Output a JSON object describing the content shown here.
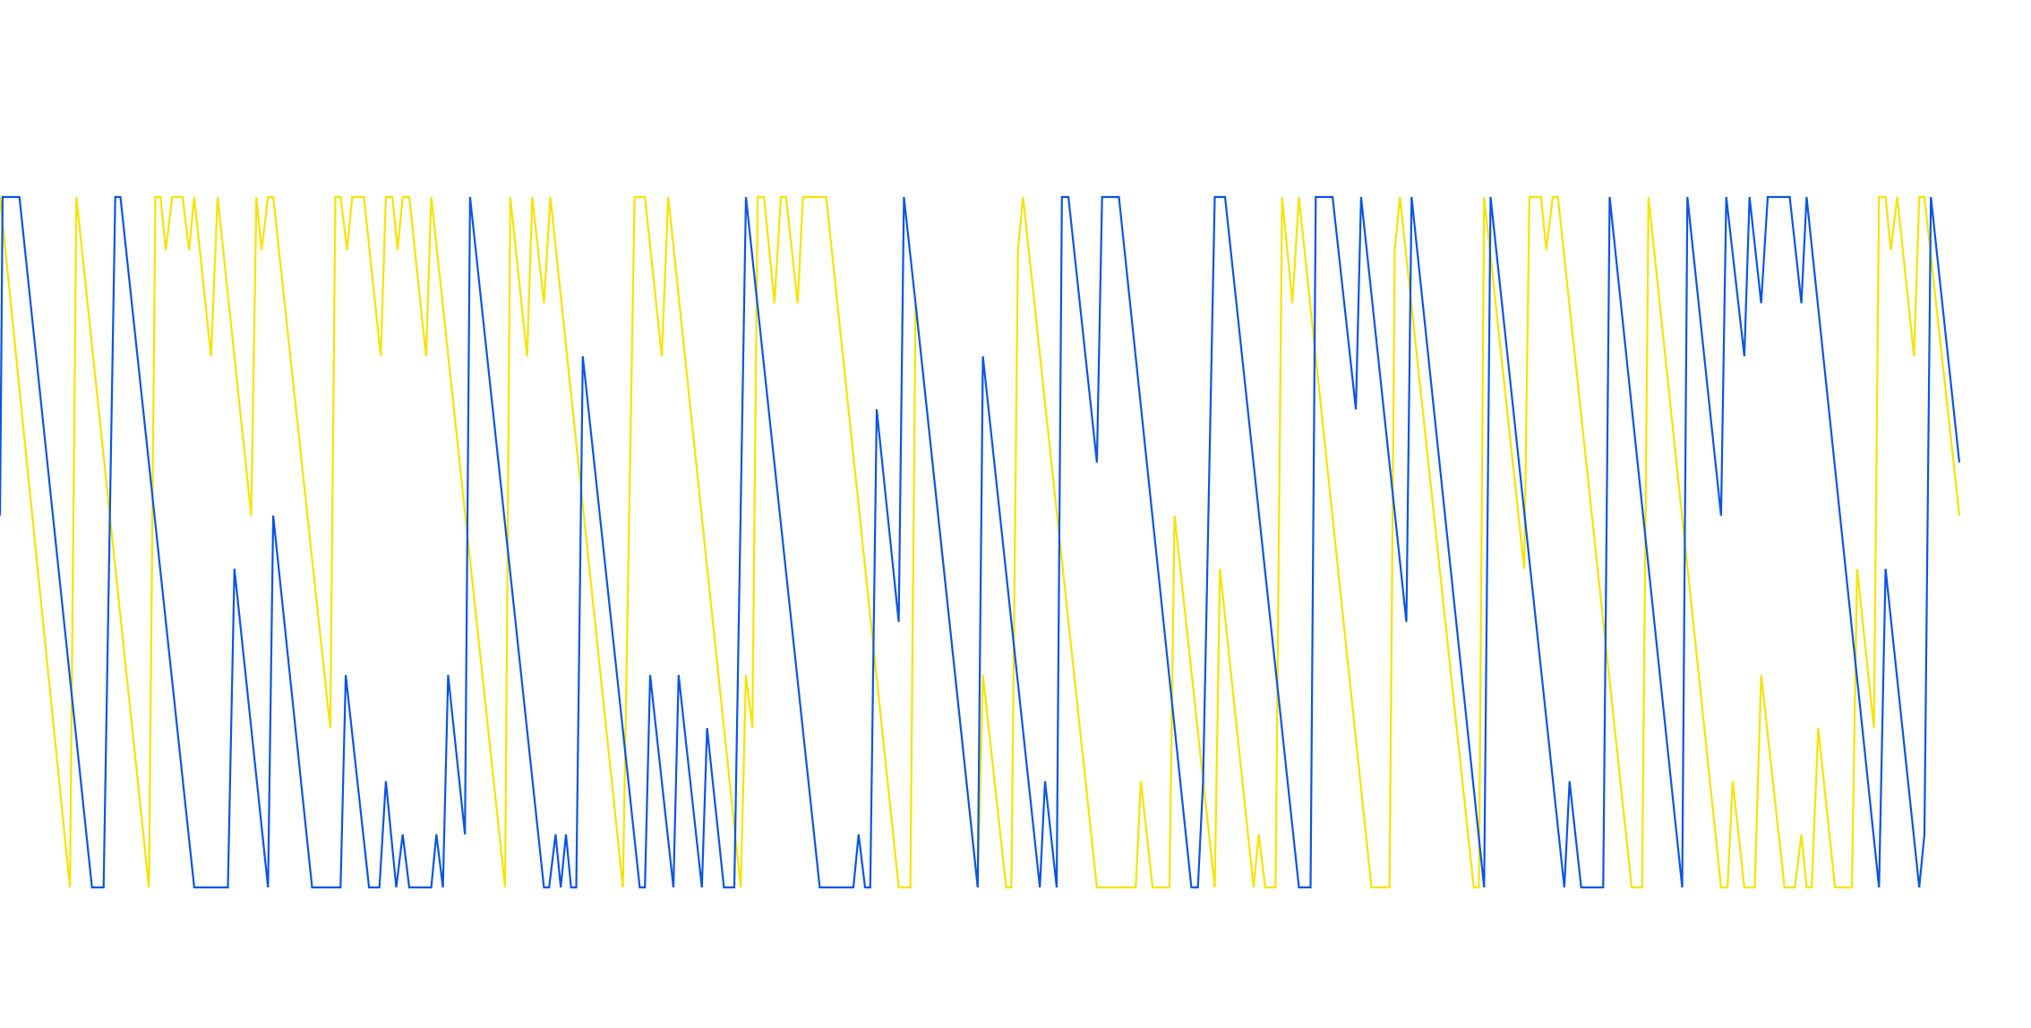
{
  "chart_data": {
    "type": "line",
    "xlim": [
      0,
      1513
    ],
    "ylim": [
      0,
      13
    ],
    "series": [
      {
        "color": "#0a55e6",
        "x": [
          0,
          2,
          15,
          71,
          80,
          89,
          93,
          150,
          176,
          181,
          207,
          211,
          241,
          263,
          267,
          285,
          293,
          298,
          306,
          311,
          316,
          333,
          337,
          342,
          346,
          359,
          363,
          420,
          424,
          429,
          433,
          437,
          441,
          445,
          450,
          494,
          498,
          502,
          520,
          524,
          542,
          546,
          559,
          567,
          576,
          633,
          659,
          663,
          668,
          672,
          677,
          694,
          698,
          707,
          755,
          759,
          803,
          807,
          816,
          820,
          825,
          847,
          851,
          864,
          920,
          925,
          929,
          938,
          946,
          1003,
          1012,
          1016,
          1029,
          1047,
          1051,
          1086,
          1090,
          1146,
          1151,
          1208,
          1212,
          1221,
          1238,
          1243,
          1299,
          1303,
          1329,
          1333,
          1347,
          1351,
          1360,
          1365,
          1382,
          1391,
          1395,
          1451,
          1456,
          1482,
          1486,
          1491,
          1513
        ],
        "values": [
          7,
          13,
          13,
          0,
          0,
          13,
          13,
          0,
          0,
          6,
          0,
          7,
          0,
          0,
          4,
          0,
          0,
          2,
          0,
          1,
          0,
          0,
          1,
          0,
          4,
          1,
          13,
          0,
          0,
          1,
          0,
          1,
          0,
          0,
          10,
          0,
          0,
          4,
          0,
          4,
          0,
          3,
          0,
          0,
          13,
          0,
          0,
          1,
          0,
          0,
          9,
          5,
          13,
          11,
          0,
          10,
          0,
          2,
          0,
          13,
          13,
          8,
          13,
          13,
          0,
          0,
          2,
          13,
          13,
          0,
          0,
          13,
          13,
          9,
          13,
          5,
          13,
          0,
          13,
          0,
          2,
          0,
          0,
          13,
          0,
          13,
          7,
          13,
          10,
          13,
          11,
          13,
          13,
          11,
          13,
          0,
          6,
          0,
          1,
          13,
          8
        ]
      },
      {
        "color": "#f7e400",
        "x": [
          0,
          54,
          59,
          115,
          120,
          124,
          128,
          133,
          141,
          146,
          150,
          163,
          168,
          194,
          198,
          202,
          207,
          211,
          255,
          259,
          263,
          268,
          272,
          281,
          294,
          298,
          303,
          307,
          311,
          316,
          329,
          333,
          390,
          394,
          407,
          411,
          420,
          425,
          481,
          490,
          498,
          511,
          516,
          572,
          576,
          581,
          585,
          590,
          598,
          603,
          607,
          616,
          620,
          638,
          694,
          703,
          707,
          755,
          759,
          777,
          781,
          786,
          790,
          847,
          877,
          881,
          890,
          903,
          907,
          938,
          942,
          968,
          972,
          977,
          985,
          990,
          998,
          1003,
          1059,
          1073,
          1077,
          1081,
          1138,
          1142,
          1146,
          1177,
          1181,
          1190,
          1194,
          1199,
          1203,
          1260,
          1268,
          1273,
          1329,
          1334,
          1338,
          1347,
          1355,
          1360,
          1378,
          1386,
          1391,
          1395,
          1399,
          1404,
          1417,
          1430,
          1434,
          1447,
          1451,
          1456,
          1460,
          1465,
          1478,
          1482,
          1486,
          1513
        ],
        "values": [
          13,
          0,
          13,
          0,
          13,
          13,
          12,
          13,
          13,
          12,
          13,
          10,
          13,
          7,
          13,
          12,
          13,
          13,
          3,
          13,
          13,
          12,
          13,
          13,
          10,
          13,
          13,
          12,
          13,
          13,
          10,
          13,
          0,
          13,
          10,
          13,
          11,
          13,
          0,
          13,
          13,
          10,
          13,
          0,
          4,
          3,
          13,
          13,
          11,
          13,
          13,
          11,
          13,
          13,
          0,
          0,
          11,
          0,
          4,
          0,
          0,
          12,
          13,
          0,
          0,
          2,
          0,
          0,
          7,
          0,
          6,
          0,
          1,
          0,
          0,
          13,
          11,
          13,
          0,
          0,
          12,
          13,
          0,
          0,
          13,
          6,
          13,
          13,
          12,
          13,
          13,
          0,
          0,
          13,
          0,
          0,
          2,
          0,
          0,
          4,
          0,
          0,
          1,
          0,
          0,
          3,
          0,
          0,
          6,
          3,
          13,
          13,
          12,
          13,
          10,
          13,
          13,
          7
        ]
      }
    ]
  }
}
